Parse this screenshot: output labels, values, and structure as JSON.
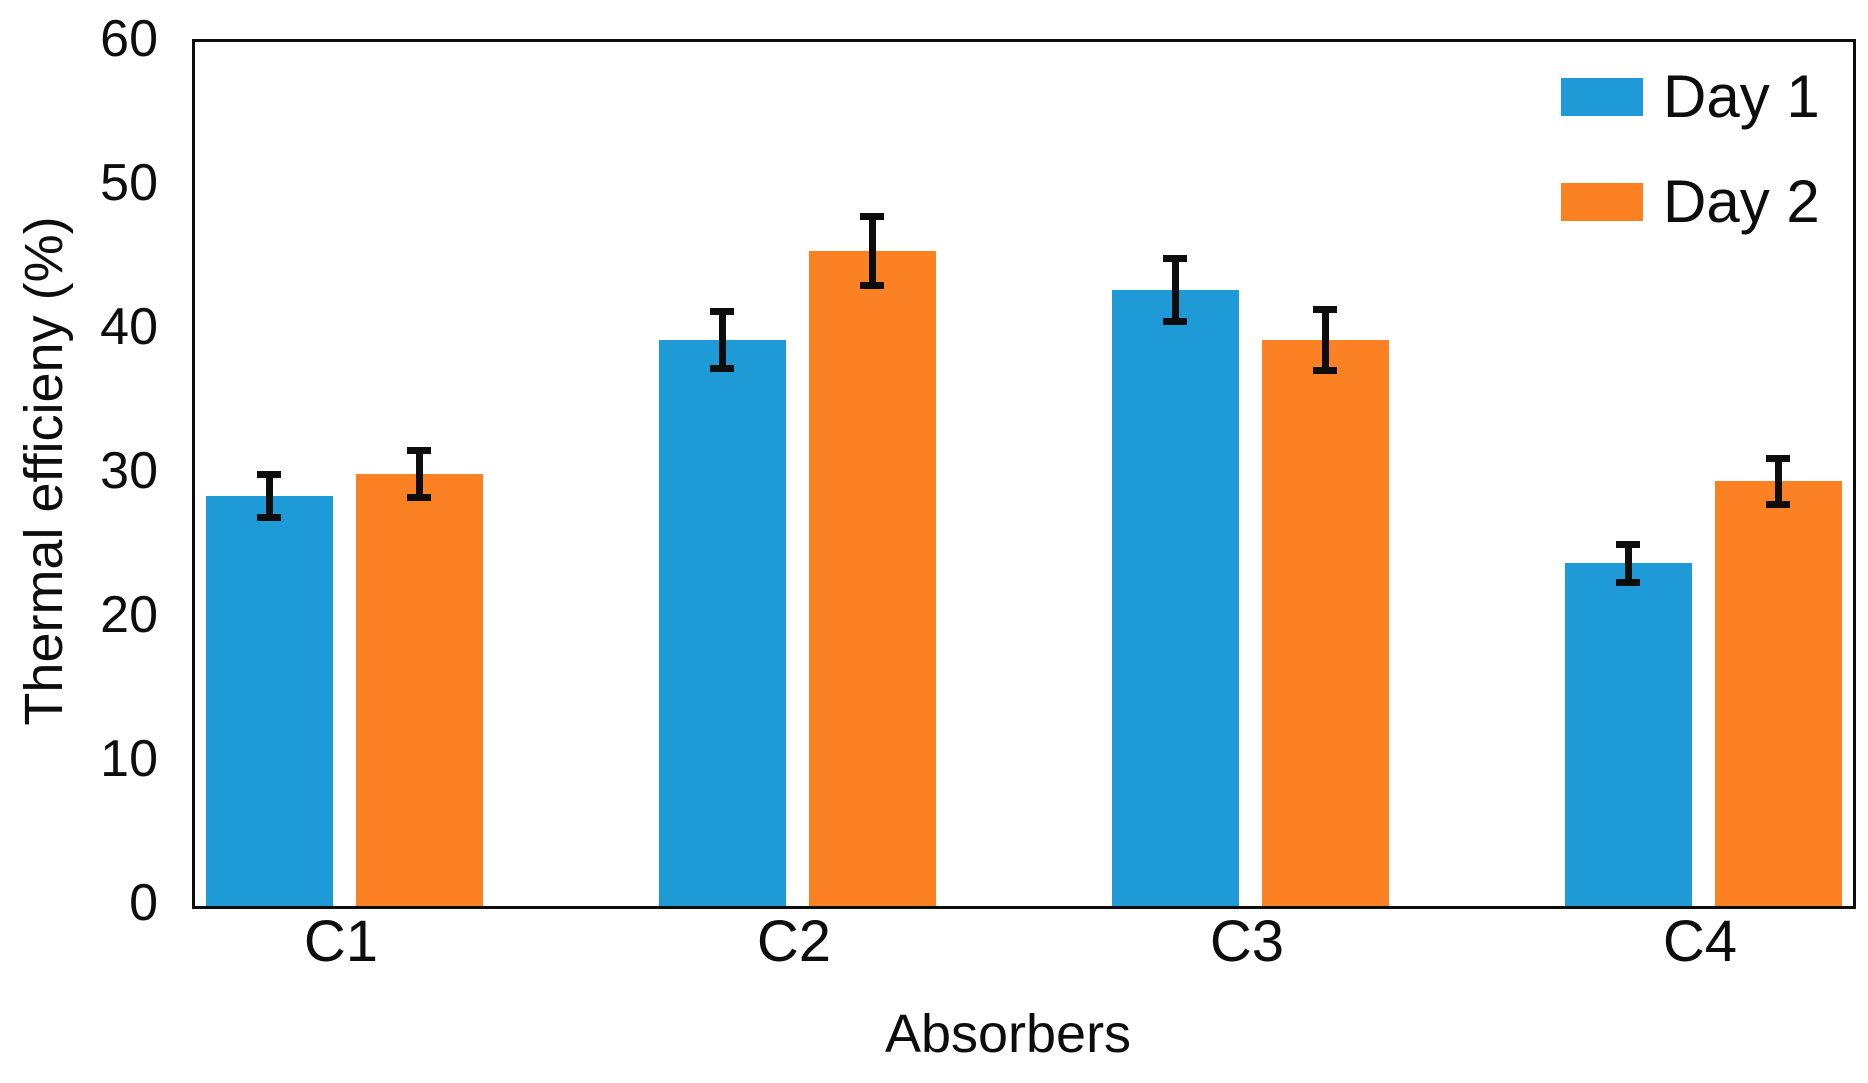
{
  "chart_data": {
    "type": "bar",
    "title": "",
    "xlabel": "Absorbers",
    "ylabel": "Thermal efficieny (%)",
    "categories": [
      "C1",
      "C2",
      "C3",
      "C4"
    ],
    "series": [
      {
        "name": "Day 1",
        "color": "#1E9AD6",
        "values": [
          28.5,
          39.3,
          42.8,
          23.8
        ],
        "errors": [
          1.5,
          2.0,
          2.2,
          1.3
        ]
      },
      {
        "name": "Day 2",
        "color": "#FC8122",
        "values": [
          30.0,
          45.5,
          39.3,
          29.5
        ],
        "errors": [
          1.6,
          2.4,
          2.1,
          1.6
        ]
      }
    ],
    "ylim": [
      0,
      60
    ],
    "yticks": [
      0,
      10,
      20,
      30,
      40,
      50,
      60
    ],
    "grid": false,
    "error_bars": true,
    "error_bar_color": "#0d0d0d",
    "axis_color": "#0d0d0d",
    "text_color": "#0d0d0d",
    "legend_position": "top-right",
    "background_color": "#ffffff"
  }
}
